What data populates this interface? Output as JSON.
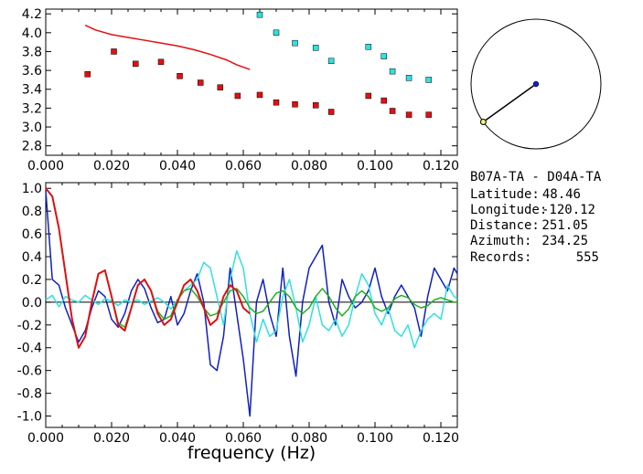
{
  "info": {
    "station_pair": "B07A-TA - D04A-TA",
    "latitude_label": "Latitude:",
    "latitude_value": "48.46",
    "longitude_label": "Longitude:",
    "longitude_value": "-120.12",
    "distance_label": "Distance:",
    "distance_value": "251.05",
    "azimuth_label": "Azimuth:",
    "azimuth_value": "234.25",
    "records_label": "Records:",
    "records_value": "555"
  },
  "colors": {
    "red": "#e01010",
    "cyan": "#30e0e0",
    "blue": "#1020c0",
    "green": "#20b020",
    "axis": "#000000"
  },
  "chart_data": [
    {
      "type": "scatter",
      "xlim": [
        0,
        0.125
      ],
      "ylim": [
        2.7,
        4.25
      ],
      "xticks": [
        "0.000",
        "0.020",
        "0.040",
        "0.060",
        "0.080",
        "0.100",
        "0.120"
      ],
      "yticks": [
        "2.8",
        "3.0",
        "3.2",
        "3.4",
        "3.6",
        "3.8",
        "4.0",
        "4.2"
      ],
      "xlabel": "",
      "ylabel": "",
      "red_curve": {
        "x": [
          0.012,
          0.015,
          0.018,
          0.02,
          0.025,
          0.03,
          0.035,
          0.04,
          0.045,
          0.05,
          0.055,
          0.058,
          0.062
        ],
        "y": [
          4.08,
          4.03,
          4.0,
          3.98,
          3.95,
          3.92,
          3.89,
          3.86,
          3.82,
          3.77,
          3.71,
          3.66,
          3.61
        ]
      },
      "red_points": {
        "x": [
          0.0127,
          0.0207,
          0.0273,
          0.035,
          0.0407,
          0.047,
          0.053,
          0.0583,
          0.065,
          0.07,
          0.0757,
          0.082,
          0.0867,
          0.098,
          0.1027,
          0.1053,
          0.1103,
          0.1163
        ],
        "y": [
          3.56,
          3.8,
          3.67,
          3.69,
          3.54,
          3.47,
          3.42,
          3.33,
          3.34,
          3.26,
          3.24,
          3.23,
          3.16,
          3.33,
          3.28,
          3.17,
          3.13,
          3.13
        ]
      },
      "cyan_points": {
        "x": [
          0.065,
          0.07,
          0.0757,
          0.082,
          0.0867,
          0.098,
          0.1027,
          0.1053,
          0.1103,
          0.1163
        ],
        "y": [
          4.19,
          4.0,
          3.89,
          3.84,
          3.7,
          3.85,
          3.75,
          3.59,
          3.52,
          3.5
        ]
      }
    },
    {
      "type": "line",
      "xlim": [
        0,
        0.125
      ],
      "ylim": [
        -1.1,
        1.05
      ],
      "xticks": [
        "0.000",
        "0.020",
        "0.040",
        "0.060",
        "0.080",
        "0.100",
        "0.120"
      ],
      "yticks": [
        "1.0",
        "0.8",
        "0.6",
        "0.4",
        "0.2",
        "0.0",
        "-0.2",
        "-0.4",
        "-0.6",
        "-0.8",
        "-1.0"
      ],
      "xlabel": "frequency (Hz)",
      "ylabel": "",
      "series": [
        {
          "color": "blue",
          "x": [
            0,
            0.002,
            0.004,
            0.006,
            0.008,
            0.01,
            0.012,
            0.014,
            0.016,
            0.018,
            0.02,
            0.022,
            0.024,
            0.026,
            0.028,
            0.03,
            0.032,
            0.034,
            0.036,
            0.038,
            0.04,
            0.042,
            0.044,
            0.046,
            0.048,
            0.05,
            0.052,
            0.054,
            0.056,
            0.058,
            0.06,
            0.062,
            0.064,
            0.066,
            0.068,
            0.07,
            0.072,
            0.074,
            0.076,
            0.078,
            0.08,
            0.082,
            0.084,
            0.086,
            0.088,
            0.09,
            0.092,
            0.094,
            0.096,
            0.098,
            0.1,
            0.102,
            0.104,
            0.106,
            0.108,
            0.11,
            0.112,
            0.114,
            0.116,
            0.118,
            0.12,
            0.122,
            0.124,
            0.125
          ],
          "y": [
            0.98,
            0.2,
            0.15,
            -0.05,
            -0.2,
            -0.35,
            -0.25,
            -0.05,
            0.1,
            0.05,
            -0.15,
            -0.22,
            -0.1,
            0.1,
            0.2,
            0.12,
            -0.05,
            -0.18,
            -0.15,
            0.05,
            -0.2,
            -0.1,
            0.1,
            0.25,
            0.0,
            -0.55,
            -0.6,
            -0.3,
            0.3,
            -0.1,
            -0.5,
            -1.0,
            0.0,
            0.2,
            -0.1,
            -0.3,
            0.3,
            -0.3,
            -0.65,
            0.0,
            0.3,
            0.4,
            0.5,
            0.0,
            -0.2,
            0.2,
            0.05,
            -0.05,
            0.0,
            0.1,
            0.3,
            0.05,
            -0.1,
            0.05,
            0.15,
            0.05,
            -0.05,
            -0.3,
            0.05,
            0.3,
            0.2,
            0.1,
            0.3,
            0.25
          ]
        },
        {
          "color": "cyan",
          "x": [
            0,
            0.002,
            0.004,
            0.006,
            0.008,
            0.01,
            0.012,
            0.014,
            0.016,
            0.018,
            0.02,
            0.022,
            0.024,
            0.026,
            0.028,
            0.03,
            0.032,
            0.034,
            0.036,
            0.038,
            0.04,
            0.042,
            0.044,
            0.046,
            0.048,
            0.05,
            0.052,
            0.054,
            0.056,
            0.058,
            0.06,
            0.062,
            0.064,
            0.066,
            0.068,
            0.07,
            0.072,
            0.074,
            0.076,
            0.078,
            0.08,
            0.082,
            0.084,
            0.086,
            0.088,
            0.09,
            0.092,
            0.094,
            0.096,
            0.098,
            0.1,
            0.102,
            0.104,
            0.106,
            0.108,
            0.11,
            0.112,
            0.114,
            0.116,
            0.118,
            0.12,
            0.122,
            0.124,
            0.125
          ],
          "y": [
            0.02,
            0.06,
            -0.04,
            0.05,
            0.02,
            0.0,
            0.06,
            0.02,
            -0.02,
            0.03,
            0.01,
            -0.03,
            0.02,
            0.0,
            0.02,
            -0.02,
            0.01,
            0.04,
            0.0,
            -0.06,
            0.02,
            0.1,
            0.15,
            0.2,
            0.35,
            0.3,
            0.05,
            -0.2,
            0.2,
            0.45,
            0.3,
            -0.1,
            -0.35,
            -0.15,
            -0.3,
            -0.25,
            0.05,
            0.2,
            -0.05,
            -0.35,
            -0.2,
            0.05,
            -0.2,
            -0.25,
            -0.15,
            -0.3,
            -0.2,
            0.05,
            0.25,
            0.15,
            -0.1,
            -0.2,
            -0.05,
            -0.25,
            -0.3,
            -0.2,
            -0.4,
            -0.25,
            -0.15,
            -0.1,
            -0.15,
            0.15,
            0.05,
            0.03
          ]
        },
        {
          "color": "green",
          "x": [
            0,
            0.002,
            0.004,
            0.006,
            0.008,
            0.01,
            0.012,
            0.014,
            0.016,
            0.018,
            0.02,
            0.022,
            0.024,
            0.026,
            0.028,
            0.03,
            0.032,
            0.034,
            0.036,
            0.038,
            0.04,
            0.042,
            0.044,
            0.046,
            0.048,
            0.05,
            0.052,
            0.054,
            0.056,
            0.058,
            0.06,
            0.062,
            0.064,
            0.066,
            0.068,
            0.07,
            0.072,
            0.074,
            0.076,
            0.078,
            0.08,
            0.082,
            0.084,
            0.086,
            0.088,
            0.09,
            0.092,
            0.094,
            0.096,
            0.098,
            0.1,
            0.102,
            0.104,
            0.106,
            0.108,
            0.11,
            0.112,
            0.114,
            0.116,
            0.118,
            0.12,
            0.122,
            0.124,
            0.125
          ],
          "y": [
            1.0,
            0.93,
            0.65,
            0.25,
            -0.15,
            -0.4,
            -0.3,
            0.0,
            0.25,
            0.28,
            0.05,
            -0.18,
            -0.22,
            -0.05,
            0.15,
            0.2,
            0.1,
            -0.08,
            -0.15,
            -0.12,
            0.02,
            0.1,
            0.12,
            0.05,
            -0.05,
            -0.12,
            -0.1,
            0.0,
            0.1,
            0.12,
            0.05,
            -0.05,
            -0.1,
            -0.08,
            0.0,
            0.08,
            0.1,
            0.05,
            -0.05,
            -0.1,
            -0.05,
            0.05,
            0.12,
            0.05,
            -0.05,
            -0.12,
            -0.06,
            0.05,
            0.1,
            0.05,
            -0.05,
            -0.08,
            -0.05,
            0.03,
            0.06,
            0.04,
            -0.02,
            -0.05,
            -0.03,
            0.02,
            0.04,
            0.02,
            0.0,
            0.0
          ]
        },
        {
          "color": "red",
          "x": [
            0,
            0.002,
            0.004,
            0.006,
            0.008,
            0.01,
            0.012,
            0.014,
            0.016,
            0.018,
            0.02,
            0.022,
            0.024,
            0.026,
            0.028,
            0.03,
            0.032,
            0.034,
            0.036,
            0.038,
            0.04,
            0.042,
            0.044,
            0.046,
            0.048,
            0.05,
            0.052,
            0.054,
            0.056,
            0.058,
            0.06,
            0.062
          ],
          "y": [
            1.0,
            0.93,
            0.65,
            0.25,
            -0.15,
            -0.4,
            -0.3,
            0.0,
            0.25,
            0.28,
            0.05,
            -0.2,
            -0.25,
            -0.05,
            0.15,
            0.2,
            0.1,
            -0.1,
            -0.2,
            -0.15,
            0.0,
            0.15,
            0.2,
            0.1,
            -0.05,
            -0.2,
            -0.15,
            0.05,
            0.15,
            0.1,
            -0.05,
            -0.1
          ]
        }
      ]
    }
  ],
  "map": {
    "azimuth_deg": 234.25
  }
}
